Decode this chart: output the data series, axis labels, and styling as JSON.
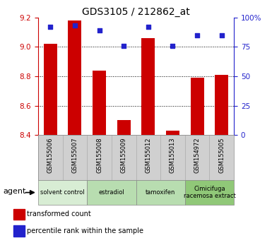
{
  "title": "GDS3105 / 212862_at",
  "samples": [
    "GSM155006",
    "GSM155007",
    "GSM155008",
    "GSM155009",
    "GSM155012",
    "GSM155013",
    "GSM154972",
    "GSM155005"
  ],
  "red_values": [
    9.02,
    9.18,
    8.84,
    8.5,
    9.06,
    8.43,
    8.79,
    8.81
  ],
  "blue_values": [
    92,
    93,
    89,
    76,
    92,
    76,
    85,
    85
  ],
  "ylim_left": [
    8.4,
    9.2
  ],
  "ylim_right": [
    0,
    100
  ],
  "yticks_left": [
    8.4,
    8.6,
    8.8,
    9.0,
    9.2
  ],
  "yticks_right": [
    0,
    25,
    50,
    75,
    100
  ],
  "groups": [
    {
      "label": "solvent control",
      "start": 0,
      "end": 1,
      "color": "#d8edd4"
    },
    {
      "label": "estradiol",
      "start": 2,
      "end": 3,
      "color": "#b8ddb0"
    },
    {
      "label": "tamoxifen",
      "start": 4,
      "end": 5,
      "color": "#b8ddb0"
    },
    {
      "label": "Cimicifuga\nracemosa extract",
      "start": 6,
      "end": 7,
      "color": "#90c878"
    }
  ],
  "bar_color": "#cc0000",
  "dot_color": "#2222cc",
  "bar_width": 0.55,
  "left_axis_color": "#cc0000",
  "right_axis_color": "#2222cc",
  "legend_items": [
    {
      "label": "transformed count",
      "color": "#cc0000"
    },
    {
      "label": "percentile rank within the sample",
      "color": "#2222cc"
    }
  ],
  "agent_label": "agent",
  "sample_bg": "#d0d0d0",
  "grid_lines": [
    9.0,
    8.8,
    8.6
  ]
}
